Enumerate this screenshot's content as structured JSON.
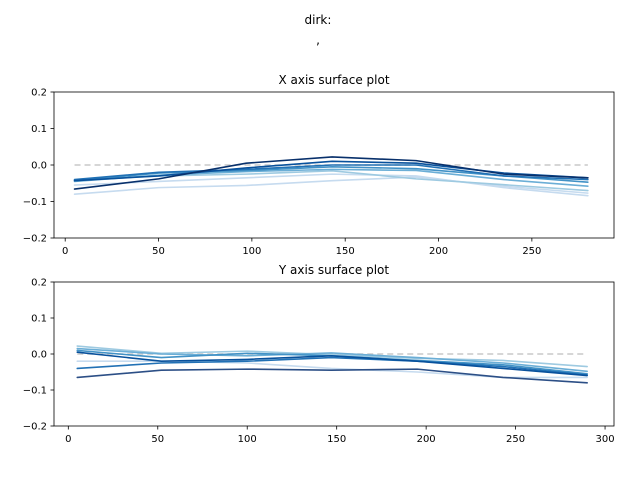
{
  "figure": {
    "suptitle_line1": "dirk:",
    "suptitle_line2": ","
  },
  "chart_data": [
    {
      "type": "line",
      "title": "X axis surface plot",
      "xlabel": "",
      "ylabel": "",
      "xlim": [
        -6,
        294
      ],
      "ylim": [
        -0.2,
        0.2
      ],
      "xticks": [
        0,
        50,
        100,
        150,
        200,
        250
      ],
      "yticks": [
        -0.2,
        -0.1,
        0.0,
        0.1,
        0.2
      ],
      "xtick_labels": [
        "0",
        "50",
        "100",
        "150",
        "200",
        "250"
      ],
      "ytick_labels": [
        "−0.2",
        "−0.1",
        "0.0",
        "0.1",
        "0.2"
      ],
      "reference_line": {
        "y": 0,
        "x": [
          5,
          280
        ],
        "color": "#c8c8c8",
        "style": "dashed"
      },
      "grid": false,
      "series": [
        {
          "color": "#c6dbef",
          "x": [
            5,
            50,
            97,
            143,
            188,
            235,
            280
          ],
          "y": [
            -0.08,
            -0.062,
            -0.056,
            -0.043,
            -0.033,
            -0.058,
            -0.077
          ]
        },
        {
          "color": "#c6dbef",
          "x": [
            5,
            50,
            97,
            143,
            188,
            235,
            280
          ],
          "y": [
            -0.055,
            -0.045,
            -0.035,
            -0.025,
            -0.03,
            -0.062,
            -0.084
          ]
        },
        {
          "color": "#9ecae1",
          "x": [
            5,
            50,
            97,
            143,
            188,
            235,
            280
          ],
          "y": [
            -0.042,
            -0.03,
            -0.025,
            -0.016,
            -0.038,
            -0.054,
            -0.07
          ]
        },
        {
          "color": "#6baed6",
          "x": [
            5,
            50,
            97,
            143,
            188,
            235,
            280
          ],
          "y": [
            -0.045,
            -0.028,
            -0.018,
            -0.012,
            -0.015,
            -0.04,
            -0.058
          ]
        },
        {
          "color": "#4292c6",
          "x": [
            5,
            50,
            97,
            143,
            188,
            235,
            280
          ],
          "y": [
            -0.043,
            -0.022,
            -0.015,
            -0.005,
            -0.01,
            -0.03,
            -0.047
          ]
        },
        {
          "color": "#2171b5",
          "x": [
            5,
            50,
            97,
            143,
            188,
            235,
            280
          ],
          "y": [
            -0.04,
            -0.02,
            -0.012,
            0.0,
            0.0,
            -0.03,
            -0.04
          ]
        },
        {
          "color": "#08519c",
          "x": [
            5,
            50,
            97,
            143,
            188,
            235,
            280
          ],
          "y": [
            -0.043,
            -0.03,
            -0.008,
            0.01,
            0.005,
            -0.022,
            -0.035
          ]
        },
        {
          "color": "#08306b",
          "x": [
            5,
            50,
            97,
            143,
            188,
            235,
            280
          ],
          "y": [
            -0.066,
            -0.038,
            0.005,
            0.022,
            0.012,
            -0.025,
            -0.035
          ]
        }
      ]
    },
    {
      "type": "line",
      "title": "Y axis surface plot",
      "xlabel": "",
      "ylabel": "",
      "xlim": [
        -8,
        305
      ],
      "ylim": [
        -0.2,
        0.2
      ],
      "xticks": [
        0,
        50,
        100,
        150,
        200,
        250,
        300
      ],
      "yticks": [
        -0.2,
        -0.1,
        0.0,
        0.1,
        0.2
      ],
      "xtick_labels": [
        "0",
        "50",
        "100",
        "150",
        "200",
        "250",
        "300"
      ],
      "ytick_labels": [
        "−0.2",
        "−0.1",
        "0.0",
        "0.1",
        "0.2"
      ],
      "reference_line": {
        "y": 0,
        "x": [
          5,
          290
        ],
        "color": "#c8c8c8",
        "style": "dashed"
      },
      "grid": false,
      "series": [
        {
          "color": "#c6dbef",
          "x": [
            5,
            52,
            100,
            147,
            195,
            243,
            290
          ],
          "y": [
            -0.02,
            -0.02,
            -0.025,
            -0.04,
            -0.05,
            -0.065,
            -0.065
          ]
        },
        {
          "color": "#9ecae1",
          "x": [
            5,
            52,
            100,
            147,
            195,
            243,
            290
          ],
          "y": [
            0.022,
            0.002,
            0.008,
            -0.002,
            -0.012,
            -0.018,
            -0.035
          ]
        },
        {
          "color": "#6baed6",
          "x": [
            5,
            52,
            100,
            147,
            195,
            243,
            290
          ],
          "y": [
            0.015,
            0.0,
            -0.005,
            0.003,
            -0.01,
            -0.025,
            -0.048
          ]
        },
        {
          "color": "#4292c6",
          "x": [
            5,
            52,
            100,
            147,
            195,
            243,
            290
          ],
          "y": [
            0.01,
            -0.01,
            0.002,
            -0.005,
            -0.018,
            -0.03,
            -0.055
          ]
        },
        {
          "color": "#2171b5",
          "x": [
            5,
            52,
            100,
            147,
            195,
            243,
            290
          ],
          "y": [
            -0.04,
            -0.025,
            -0.02,
            -0.01,
            -0.02,
            -0.035,
            -0.058
          ]
        },
        {
          "color": "#08519c",
          "x": [
            5,
            52,
            100,
            147,
            195,
            243,
            290
          ],
          "y": [
            0.005,
            -0.02,
            -0.015,
            -0.005,
            -0.02,
            -0.04,
            -0.06
          ]
        },
        {
          "color": "#2c4f86",
          "x": [
            5,
            52,
            100,
            147,
            195,
            243,
            290
          ],
          "y": [
            -0.065,
            -0.045,
            -0.042,
            -0.045,
            -0.042,
            -0.065,
            -0.08
          ]
        }
      ]
    }
  ]
}
